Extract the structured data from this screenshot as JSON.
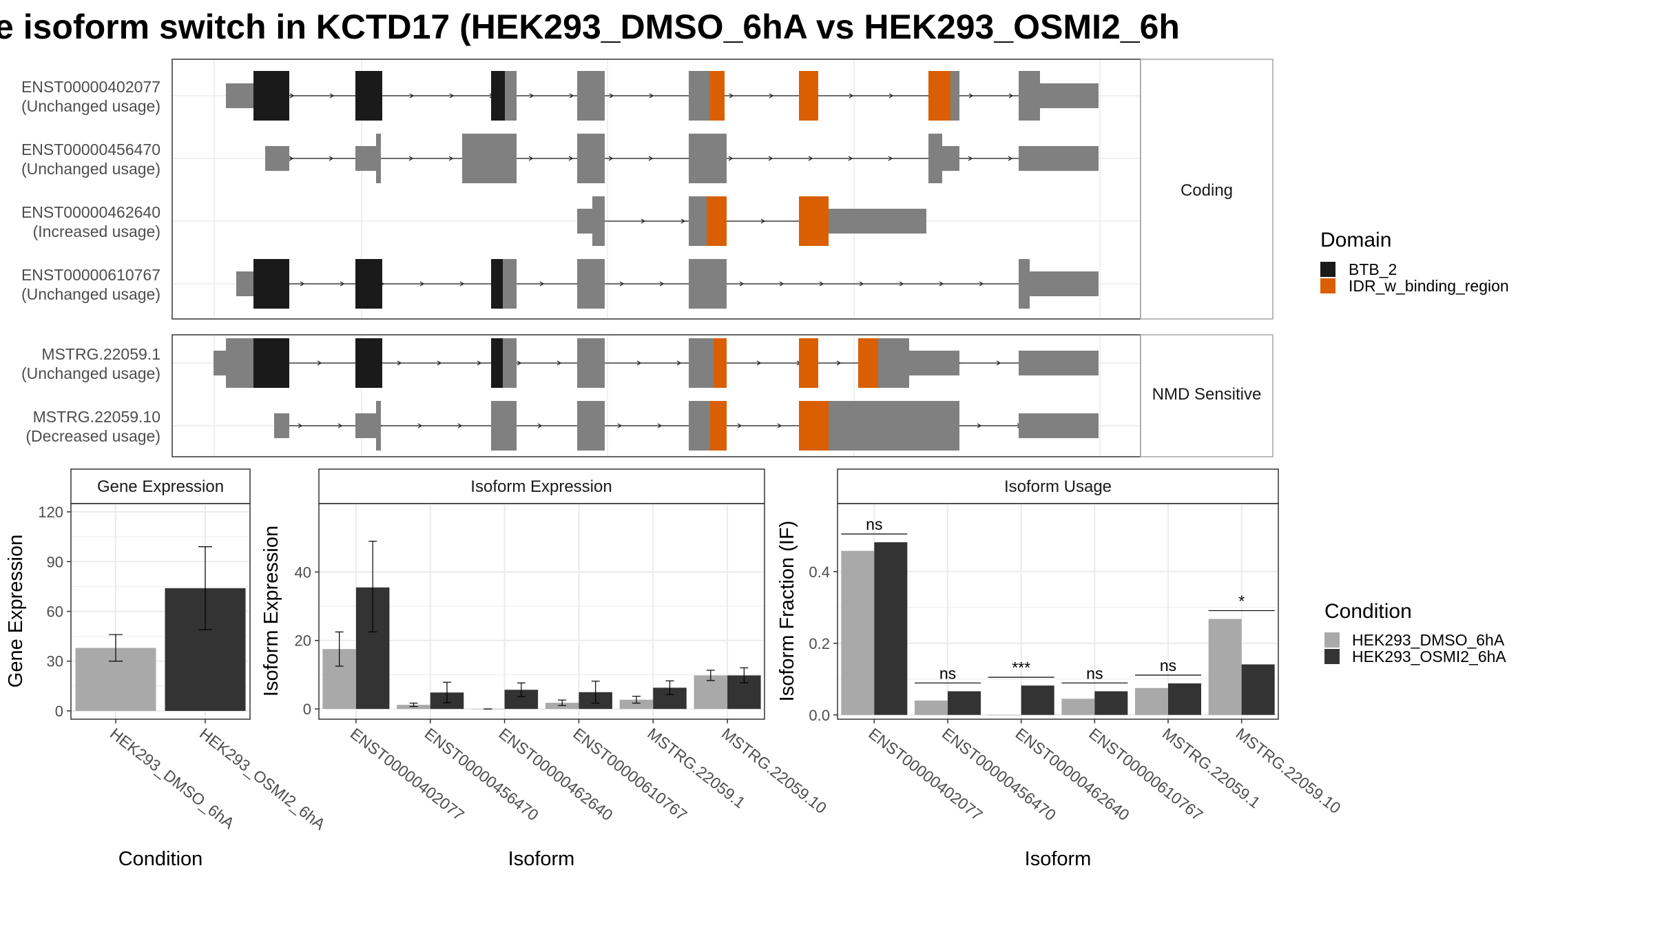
{
  "title": "e isoform switch in KCTD17 (HEK293_DMSO_6hA vs HEK293_OSMI2_6h",
  "colors": {
    "exon": "#808080",
    "btb": "#1a1a1a",
    "idr": "#d95f02",
    "dmso": "#a9a9a9",
    "osmi": "#333333",
    "panel_border": "#333333",
    "strip_border": "#a6a6a6",
    "grid": "#ebebeb"
  },
  "structure": {
    "groups": [
      {
        "label": "Coding",
        "transcripts": [
          {
            "id": "ENST00000402077",
            "usage": "(Unchanged usage)"
          },
          {
            "id": "ENST00000456470",
            "usage": "(Unchanged usage)"
          },
          {
            "id": "ENST00000462640",
            "usage": "(Increased usage)"
          },
          {
            "id": "ENST00000610767",
            "usage": "(Unchanged usage)"
          }
        ]
      },
      {
        "label": "NMD Sensitive",
        "transcripts": [
          {
            "id": "MSTRG.22059.1",
            "usage": "(Unchanged usage)"
          },
          {
            "id": "MSTRG.22059.10",
            "usage": "(Decreased usage)"
          }
        ]
      }
    ],
    "legend": {
      "title": "Domain",
      "items": [
        {
          "label": "BTB_2",
          "color": "#1a1a1a"
        },
        {
          "label": "IDR_w_binding_region",
          "color": "#d95f02"
        }
      ]
    }
  },
  "chart_data": [
    {
      "type": "bar",
      "title": "Gene Expression",
      "xlabel": "Condition",
      "ylabel": "Gene Expression",
      "categories": [
        "HEK293_DMSO_6hA",
        "HEK293_OSMI2_6hA"
      ],
      "values": [
        38,
        74
      ],
      "errors": [
        [
          30,
          46
        ],
        [
          49,
          99
        ]
      ],
      "yticks": [
        0,
        30,
        60,
        90,
        120
      ],
      "ylim": [
        -5,
        125
      ]
    },
    {
      "type": "bar",
      "title": "Isoform Expression",
      "xlabel": "Isoform",
      "ylabel": "Isoform Expression",
      "categories": [
        "ENST00000402077",
        "ENST00000456470",
        "ENST00000462640",
        "ENST00000610767",
        "MSTRG.22059.1",
        "MSTRG.22059.10"
      ],
      "series": [
        {
          "name": "HEK293_DMSO_6hA",
          "values": [
            17.5,
            1.2,
            0,
            1.8,
            2.7,
            9.8
          ],
          "errors": [
            [
              12.5,
              22.5
            ],
            [
              0.7,
              1.7
            ],
            [
              0,
              0
            ],
            [
              1.0,
              2.6
            ],
            [
              1.7,
              3.7
            ],
            [
              8.3,
              11.3
            ]
          ]
        },
        {
          "name": "HEK293_OSMI2_6hA",
          "values": [
            35.5,
            4.8,
            5.6,
            4.9,
            6.2,
            9.8
          ],
          "errors": [
            [
              22.5,
              49.0
            ],
            [
              1.8,
              7.8
            ],
            [
              3.6,
              7.6
            ],
            [
              1.7,
              8.1
            ],
            [
              4.2,
              8.2
            ],
            [
              7.6,
              12.0
            ]
          ]
        }
      ],
      "yticks": [
        0,
        20,
        40
      ],
      "ylim": [
        -3,
        60
      ]
    },
    {
      "type": "bar",
      "title": "Isoform Usage",
      "xlabel": "Isoform",
      "ylabel": "Isoform Fraction (IF)",
      "categories": [
        "ENST00000402077",
        "ENST00000456470",
        "ENST00000462640",
        "ENST00000610767",
        "MSTRG.22059.1",
        "MSTRG.22059.10"
      ],
      "series": [
        {
          "name": "HEK293_DMSO_6hA",
          "values": [
            0.458,
            0.04,
            0.0,
            0.045,
            0.075,
            0.268
          ]
        },
        {
          "name": "HEK293_OSMI2_6hA",
          "values": [
            0.482,
            0.066,
            0.082,
            0.066,
            0.088,
            0.141
          ]
        }
      ],
      "significance": [
        "ns",
        "ns",
        "***",
        "ns",
        "ns",
        "*"
      ],
      "yticks": [
        0.0,
        0.2,
        0.4
      ],
      "yticklabels": [
        "0.0",
        "0.2",
        "0.4"
      ],
      "ylim": [
        -0.012,
        0.59
      ]
    }
  ],
  "condition_legend": {
    "title": "Condition",
    "items": [
      {
        "label": "HEK293_DMSO_6hA",
        "color": "#a9a9a9"
      },
      {
        "label": "HEK293_OSMI2_6hA",
        "color": "#333333"
      }
    ]
  }
}
